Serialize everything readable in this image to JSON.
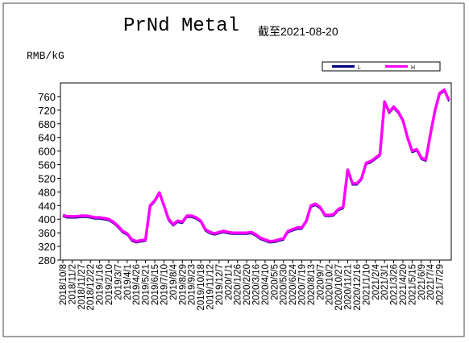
{
  "chart_data": {
    "type": "line",
    "title": "PrNd Metal",
    "subtitle": "截至2021-08-20",
    "y_label": "RMB/kG",
    "categories": [
      "2018/10/8",
      null,
      "2018/11/2",
      null,
      "2018/11/27",
      null,
      "2018/12/22",
      null,
      "2019/1/16",
      null,
      "2019/2/10",
      null,
      "2019/3/7",
      null,
      "2019/4/1",
      null,
      "2019/4/26",
      null,
      "2019/5/21",
      null,
      "2019/6/15",
      null,
      "2019/7/10",
      null,
      "2019/8/4",
      null,
      "2019/8/29",
      null,
      "2019/9/23",
      null,
      "2019/10/18",
      null,
      "2019/11/12",
      null,
      "2019/12/7",
      null,
      "2020/1/1",
      null,
      "2020/1/26",
      null,
      "2020/2/20",
      null,
      "2020/3/16",
      null,
      "2020/4/10",
      null,
      "2020/5/5",
      null,
      "2020/5/30",
      null,
      "2020/6/24",
      null,
      "2020/7/19",
      null,
      "2020/8/13",
      null,
      "2020/9/7",
      null,
      "2020/10/2",
      null,
      "2020/10/27",
      null,
      "2020/11/21",
      null,
      "2020/12/16",
      null,
      "2021/1/10",
      null,
      "2021/2/4",
      null,
      "2021/3/1",
      null,
      "2021/3/26",
      null,
      "2021/4/20",
      null,
      "2021/5/15",
      null,
      "2021/6/9",
      null,
      "2021/7/4",
      null,
      "2021/7/29",
      null,
      null
    ],
    "series": [
      {
        "name": "L",
        "color": "#000080",
        "values": [
          408,
          404,
          404,
          404,
          406,
          406,
          404,
          401,
          401,
          399,
          396,
          388,
          376,
          361,
          354,
          336,
          331,
          334,
          336,
          436,
          451,
          474,
          436,
          396,
          381,
          391,
          388,
          406,
          406,
          401,
          391,
          366,
          358,
          354,
          358,
          361,
          358,
          356,
          356,
          356,
          356,
          358,
          351,
          341,
          336,
          331,
          332,
          336,
          339,
          361,
          366,
          371,
          371,
          391,
          436,
          441,
          431,
          409,
          408,
          411,
          426,
          431,
          541,
          501,
          501,
          516,
          561,
          566,
          576,
          586,
          741,
          711,
          726,
          711,
          686,
          636,
          596,
          601,
          576,
          571,
          646,
          716,
          766,
          776,
          746
        ]
      },
      {
        "name": "H",
        "color": "#ff00ff",
        "values": [
          412,
          408,
          408,
          408,
          410,
          410,
          408,
          405,
          405,
          403,
          400,
          392,
          380,
          365,
          358,
          340,
          335,
          338,
          340,
          440,
          455,
          478,
          440,
          400,
          385,
          395,
          392,
          410,
          410,
          405,
          395,
          370,
          362,
          358,
          362,
          365,
          362,
          360,
          360,
          360,
          360,
          362,
          355,
          345,
          340,
          335,
          336,
          340,
          343,
          365,
          370,
          375,
          375,
          395,
          440,
          445,
          435,
          413,
          412,
          415,
          430,
          435,
          545,
          505,
          505,
          520,
          565,
          570,
          580,
          590,
          745,
          715,
          730,
          715,
          690,
          640,
          600,
          605,
          580,
          575,
          650,
          720,
          770,
          780,
          750
        ]
      }
    ],
    "ylim": [
      280,
      800
    ],
    "yticks": [
      280,
      320,
      360,
      400,
      440,
      480,
      520,
      560,
      600,
      640,
      680,
      720,
      760
    ]
  }
}
